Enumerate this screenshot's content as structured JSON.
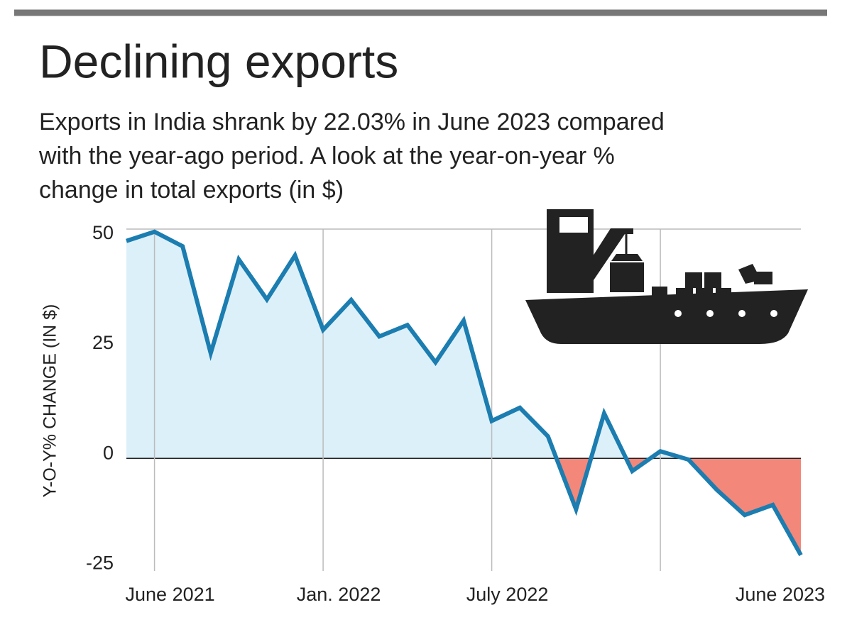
{
  "chart_data": {
    "type": "line",
    "title": "Declining exports",
    "subtitle": [
      "Exports in India shrank by 22.03% in June 2023 compared",
      "with the year-ago period. A look at the year-on-year %",
      "change in total exports (in $)"
    ],
    "y_label": "Y-O-Y% CHANGE (IN $)",
    "categories": [
      null,
      "June 2021",
      null,
      null,
      null,
      null,
      null,
      "Jan. 2022",
      null,
      null,
      null,
      null,
      null,
      "July 2022",
      null,
      null,
      null,
      null,
      null,
      null,
      null,
      null,
      null,
      null,
      "June 2023"
    ],
    "series": [
      {
        "name": "Y-o-Y % change",
        "color": "#1b7db0",
        "values": [
          49.4,
          51.5,
          48.2,
          23.9,
          45.2,
          36.1,
          46.1,
          29.2,
          36.0,
          27.7,
          30.3,
          21.8,
          31.3,
          8.5,
          11.5,
          5.0,
          -11.6,
          10.2,
          -2.9,
          1.6,
          -0.3,
          -7.1,
          -12.9,
          -10.6,
          -22.0
        ]
      }
    ],
    "positive_fill": "#dcf0fa",
    "negative_fill": "#f2877a",
    "ylim": [
      -25.6,
      52.1
    ],
    "yticks": [
      -25,
      0,
      25,
      50
    ],
    "grid": true
  }
}
